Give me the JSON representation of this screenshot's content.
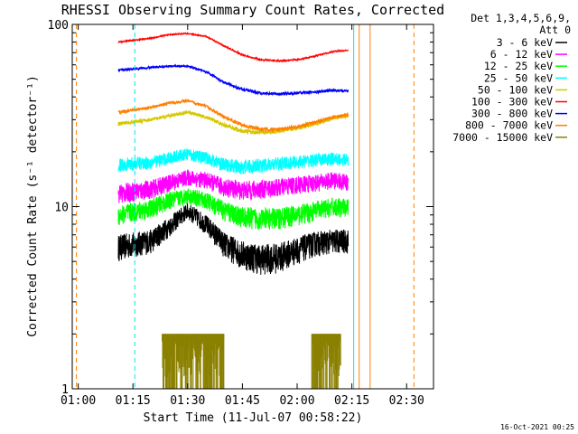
{
  "chart_data": {
    "type": "line",
    "title": "RHESSI Observing Summary Count Rates, Corrected",
    "xlabel": "Start Time (11-Jul-07 00:58:22)",
    "ylabel": "Corrected Count Rate (s⁻¹ detector⁻¹)",
    "yscale": "log",
    "ylim": [
      1,
      100
    ],
    "xlim_minutes_after_start": [
      0,
      99
    ],
    "x_ticks": [
      "01:00",
      "01:15",
      "01:30",
      "01:45",
      "02:00",
      "02:15",
      "02:30"
    ],
    "y_ticks": [
      "1",
      "10",
      "100"
    ],
    "legend_header": [
      "Det 1,3,4,5,6,9,",
      "Att 0"
    ],
    "legend_position": "right",
    "footer_date": "16-Oct-2021 00:25",
    "grid": false,
    "vertical_markers": [
      {
        "time": "00:59:30",
        "color": "#ff8000",
        "style": "dashed"
      },
      {
        "time": "01:15:30",
        "color": "#00e5ee",
        "style": "dashed"
      },
      {
        "time": "02:15:30",
        "color": "#00e5ee",
        "style": "solid"
      },
      {
        "time": "02:17:00",
        "color": "#ff8000",
        "style": "solid"
      },
      {
        "time": "02:20:00",
        "color": "#ff8000",
        "style": "solid"
      },
      {
        "time": "02:32:00",
        "color": "#ff8000",
        "style": "dashed"
      }
    ],
    "series": [
      {
        "name": "3 - 6 keV",
        "color": "#000000",
        "noise": 1.0,
        "points": [
          [
            "01:11",
            6.0
          ],
          [
            "01:20",
            6.5
          ],
          [
            "01:25",
            7.8
          ],
          [
            "01:30",
            9.5
          ],
          [
            "01:35",
            8.0
          ],
          [
            "01:40",
            6.2
          ],
          [
            "01:45",
            5.5
          ],
          [
            "01:50",
            5.2
          ],
          [
            "01:55",
            5.3
          ],
          [
            "02:00",
            5.8
          ],
          [
            "02:05",
            6.3
          ],
          [
            "02:10",
            6.5
          ],
          [
            "02:14",
            6.5
          ]
        ]
      },
      {
        "name": "6 - 12 keV",
        "color": "#ff00ff",
        "noise": 1.5,
        "points": [
          [
            "01:11",
            11.8
          ],
          [
            "01:20",
            12.5
          ],
          [
            "01:25",
            13.5
          ],
          [
            "01:30",
            14.5
          ],
          [
            "01:35",
            14.0
          ],
          [
            "01:40",
            12.8
          ],
          [
            "01:45",
            12.3
          ],
          [
            "01:50",
            12.5
          ],
          [
            "01:55",
            12.8
          ],
          [
            "02:00",
            13.2
          ],
          [
            "02:05",
            13.5
          ],
          [
            "02:10",
            14.0
          ],
          [
            "02:14",
            13.5
          ]
        ]
      },
      {
        "name": "12 - 25 keV",
        "color": "#00ff00",
        "noise": 1.2,
        "points": [
          [
            "01:11",
            9.0
          ],
          [
            "01:20",
            9.8
          ],
          [
            "01:25",
            10.8
          ],
          [
            "01:30",
            11.5
          ],
          [
            "01:35",
            10.8
          ],
          [
            "01:40",
            9.5
          ],
          [
            "01:45",
            8.8
          ],
          [
            "01:50",
            8.6
          ],
          [
            "01:55",
            8.7
          ],
          [
            "02:00",
            9.0
          ],
          [
            "02:05",
            9.5
          ],
          [
            "02:10",
            10.0
          ],
          [
            "02:14",
            9.8
          ]
        ]
      },
      {
        "name": "25 - 50 keV",
        "color": "#00ffff",
        "noise": 1.5,
        "points": [
          [
            "01:11",
            17.0
          ],
          [
            "01:20",
            17.5
          ],
          [
            "01:25",
            18.5
          ],
          [
            "01:30",
            19.5
          ],
          [
            "01:35",
            18.5
          ],
          [
            "01:40",
            17.0
          ],
          [
            "01:45",
            16.5
          ],
          [
            "01:50",
            16.8
          ],
          [
            "01:55",
            17.2
          ],
          [
            "02:00",
            17.6
          ],
          [
            "02:05",
            18.0
          ],
          [
            "02:10",
            18.3
          ],
          [
            "02:14",
            18.0
          ]
        ]
      },
      {
        "name": "50 - 100 keV",
        "color": "#d4c800",
        "noise": 0.7,
        "points": [
          [
            "01:11",
            28.5
          ],
          [
            "01:20",
            30.0
          ],
          [
            "01:25",
            31.5
          ],
          [
            "01:30",
            33.0
          ],
          [
            "01:35",
            31.0
          ],
          [
            "01:40",
            28.0
          ],
          [
            "01:45",
            26.0
          ],
          [
            "01:50",
            25.5
          ],
          [
            "01:55",
            26.0
          ],
          [
            "02:00",
            27.0
          ],
          [
            "02:05",
            28.5
          ],
          [
            "02:10",
            30.5
          ],
          [
            "02:14",
            31.5
          ]
        ]
      },
      {
        "name": "100 - 300 keV",
        "color": "#ff0000",
        "noise": 0.6,
        "points": [
          [
            "01:11",
            80.0
          ],
          [
            "01:20",
            84.0
          ],
          [
            "01:25",
            88.0
          ],
          [
            "01:30",
            89.0
          ],
          [
            "01:35",
            86.0
          ],
          [
            "01:40",
            76.0
          ],
          [
            "01:45",
            68.0
          ],
          [
            "01:50",
            64.0
          ],
          [
            "01:55",
            63.0
          ],
          [
            "02:00",
            64.0
          ],
          [
            "02:05",
            67.0
          ],
          [
            "02:10",
            71.0
          ],
          [
            "02:14",
            72.0
          ]
        ]
      },
      {
        "name": "300 - 800 keV",
        "color": "#0000ff",
        "noise": 0.8,
        "points": [
          [
            "01:11",
            56.0
          ],
          [
            "01:20",
            58.0
          ],
          [
            "01:25",
            59.0
          ],
          [
            "01:30",
            59.0
          ],
          [
            "01:35",
            55.0
          ],
          [
            "01:40",
            48.0
          ],
          [
            "01:45",
            44.0
          ],
          [
            "01:50",
            42.0
          ],
          [
            "01:55",
            41.5
          ],
          [
            "02:00",
            42.0
          ],
          [
            "02:05",
            42.5
          ],
          [
            "02:10",
            43.5
          ],
          [
            "02:14",
            43.0
          ]
        ]
      },
      {
        "name": "800 - 7000 keV",
        "color": "#ff8000",
        "noise": 0.7,
        "points": [
          [
            "01:11",
            33.0
          ],
          [
            "01:20",
            35.0
          ],
          [
            "01:25",
            37.0
          ],
          [
            "01:30",
            38.0
          ],
          [
            "01:35",
            35.5
          ],
          [
            "01:40",
            31.0
          ],
          [
            "01:45",
            28.0
          ],
          [
            "01:50",
            26.5
          ],
          [
            "01:55",
            26.5
          ],
          [
            "02:00",
            27.5
          ],
          [
            "02:05",
            29.0
          ],
          [
            "02:10",
            31.0
          ],
          [
            "02:14",
            32.0
          ]
        ]
      },
      {
        "name": "7000 - 15000 keV",
        "color": "#8b8000",
        "noise": 0.0,
        "points": [
          [
            "01:23",
            2.0
          ],
          [
            "01:40",
            2.0
          ],
          [
            "02:04",
            2.0
          ],
          [
            "02:12",
            2.0
          ]
        ]
      }
    ]
  }
}
